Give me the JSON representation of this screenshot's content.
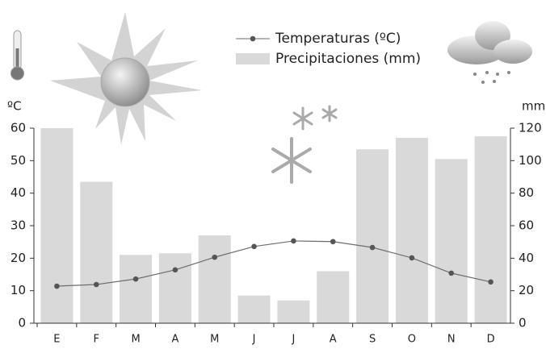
{
  "chart_data": {
    "type": "combo",
    "categories": [
      "E",
      "F",
      "M",
      "A",
      "M",
      "J",
      "J",
      "A",
      "S",
      "O",
      "N",
      "D"
    ],
    "ylabel": "ºC",
    "y2label": "mm",
    "ylim": [
      0,
      60
    ],
    "yticks": [
      0,
      10,
      20,
      30,
      40,
      50,
      60
    ],
    "y2lim": [
      0,
      120
    ],
    "y2ticks": [
      0,
      20,
      40,
      60,
      80,
      100,
      120
    ],
    "legend": "top",
    "series": [
      {
        "name": "Temperaturas (ºC)",
        "kind": "line",
        "color": "#6e6e6e",
        "values": [
          11.4,
          11.9,
          13.6,
          16.4,
          20.3,
          23.6,
          25.3,
          25.1,
          23.3,
          20.1,
          15.4,
          12.7
        ]
      },
      {
        "name": "Precipitaciones (mm)",
        "kind": "bar",
        "axis": "y2",
        "color": "#d9d9da",
        "values": [
          120,
          87,
          42,
          43,
          54,
          17,
          14,
          32,
          107,
          114,
          101,
          115
        ]
      }
    ]
  }
}
